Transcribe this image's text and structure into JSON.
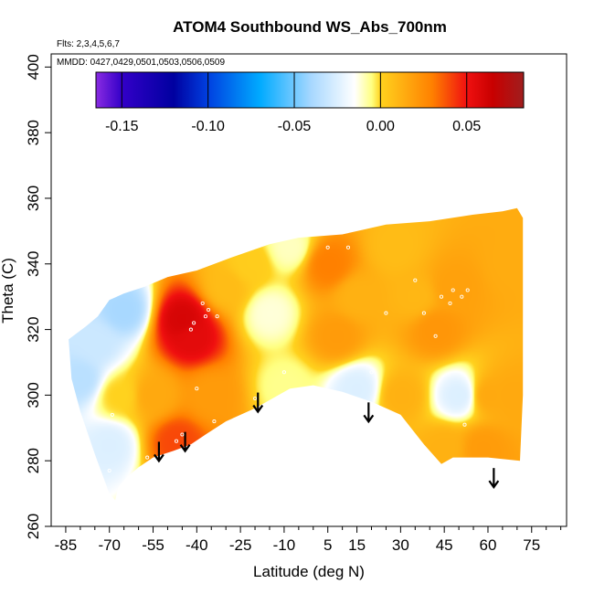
{
  "chart_data": {
    "type": "heatmap",
    "title": "ATOM4 Southbound WS_Abs_700nm",
    "flights_label": "Flts: 2,3,4,5,6,7",
    "dates_label": "MMDD: 0427,0429,0501,0503,0506,0509",
    "xlabel": "Latitude (deg N)",
    "ylabel": "Theta (C)",
    "xlim": [
      -90,
      87
    ],
    "ylim": [
      260,
      404
    ],
    "x_ticks": [
      -85,
      -70,
      -55,
      -40,
      -25,
      -10,
      5,
      15,
      30,
      45,
      60,
      75
    ],
    "x_tick_labels": [
      "-85",
      "-70",
      "-55",
      "-40",
      "-25",
      "-10",
      "5",
      "15",
      "30",
      "45",
      "60",
      "75"
    ],
    "x_minor_ticks": [
      -80,
      -75,
      -65,
      -60,
      -50,
      -45,
      -35,
      -30,
      -20,
      -15,
      -5,
      0,
      10,
      20,
      25,
      35,
      40,
      50,
      55,
      65,
      70,
      80,
      85
    ],
    "y_ticks": [
      260,
      280,
      300,
      320,
      340,
      360,
      380,
      400
    ],
    "y_tick_labels": [
      "260",
      "280",
      "300",
      "320",
      "340",
      "360",
      "380",
      "400"
    ],
    "colorbar": {
      "range": [
        -0.165,
        0.083
      ],
      "ticks": [
        -0.15,
        -0.1,
        -0.05,
        0.0,
        0.05
      ],
      "tick_labels": [
        "-0.15",
        "-0.10",
        "-0.05",
        "0.00",
        "0.05"
      ],
      "stops": [
        {
          "value": -0.165,
          "color": "#8a2be2"
        },
        {
          "value": -0.15,
          "color": "#3300c8"
        },
        {
          "value": -0.12,
          "color": "#0000a0"
        },
        {
          "value": -0.1,
          "color": "#0040e0"
        },
        {
          "value": -0.07,
          "color": "#00aaff"
        },
        {
          "value": -0.04,
          "color": "#a8d8ff"
        },
        {
          "value": -0.015,
          "color": "#ffffff"
        },
        {
          "value": -0.005,
          "color": "#ffff80"
        },
        {
          "value": 0.0,
          "color": "#ffd21e"
        },
        {
          "value": 0.03,
          "color": "#ff8000"
        },
        {
          "value": 0.05,
          "color": "#f01010"
        },
        {
          "value": 0.065,
          "color": "#c80000"
        },
        {
          "value": 0.083,
          "color": "#a01e1e"
        }
      ]
    },
    "coverage_outline": [
      [
        -84,
        317
      ],
      [
        -78,
        321
      ],
      [
        -74,
        324
      ],
      [
        -70,
        329
      ],
      [
        -65,
        331
      ],
      [
        -58,
        333
      ],
      [
        -50,
        336
      ],
      [
        -40,
        338
      ],
      [
        -28,
        342
      ],
      [
        -15,
        346
      ],
      [
        -5,
        348
      ],
      [
        10,
        349
      ],
      [
        25,
        352
      ],
      [
        40,
        353
      ],
      [
        55,
        355
      ],
      [
        65,
        356
      ],
      [
        70,
        357
      ],
      [
        72,
        354
      ],
      [
        72,
        300
      ],
      [
        71,
        280
      ],
      [
        60,
        281
      ],
      [
        48,
        281
      ],
      [
        44,
        279
      ],
      [
        38,
        285
      ],
      [
        30,
        294
      ],
      [
        20,
        298
      ],
      [
        10,
        301
      ],
      [
        0,
        303
      ],
      [
        -8,
        302
      ],
      [
        -20,
        296
      ],
      [
        -30,
        292
      ],
      [
        -37,
        288
      ],
      [
        -42,
        285
      ],
      [
        -48,
        283
      ],
      [
        -55,
        281
      ],
      [
        -60,
        278
      ],
      [
        -64,
        275
      ],
      [
        -67,
        272
      ],
      [
        -68,
        268
      ],
      [
        -70,
        270
      ],
      [
        -75,
        282
      ],
      [
        -80,
        295
      ],
      [
        -83,
        305
      ]
    ],
    "value_field": [
      {
        "lat": -75,
        "theta": 316,
        "value": -0.03
      },
      {
        "lat": -80,
        "theta": 305,
        "value": -0.035
      },
      {
        "lat": -70,
        "theta": 285,
        "value": -0.025
      },
      {
        "lat": -67,
        "theta": 300,
        "value": 0.0
      },
      {
        "lat": -65,
        "theta": 326,
        "value": -0.04
      },
      {
        "lat": -55,
        "theta": 300,
        "value": 0.015
      },
      {
        "lat": -45,
        "theta": 323,
        "value": 0.06
      },
      {
        "lat": -42,
        "theta": 318,
        "value": 0.055
      },
      {
        "lat": -47,
        "theta": 286,
        "value": 0.04
      },
      {
        "lat": -35,
        "theta": 300,
        "value": 0.02
      },
      {
        "lat": -30,
        "theta": 333,
        "value": 0.008
      },
      {
        "lat": -22,
        "theta": 340,
        "value": 0.002
      },
      {
        "lat": -15,
        "theta": 325,
        "value": -0.012
      },
      {
        "lat": -10,
        "theta": 303,
        "value": -0.006
      },
      {
        "lat": -8,
        "theta": 345,
        "value": -0.01
      },
      {
        "lat": 5,
        "theta": 340,
        "value": 0.03
      },
      {
        "lat": 8,
        "theta": 318,
        "value": 0.02
      },
      {
        "lat": 15,
        "theta": 302,
        "value": -0.025
      },
      {
        "lat": 15,
        "theta": 330,
        "value": 0.012
      },
      {
        "lat": 28,
        "theta": 345,
        "value": 0.008
      },
      {
        "lat": 35,
        "theta": 330,
        "value": 0.01
      },
      {
        "lat": 30,
        "theta": 300,
        "value": 0.012
      },
      {
        "lat": 42,
        "theta": 320,
        "value": 0.022
      },
      {
        "lat": 48,
        "theta": 333,
        "value": 0.018
      },
      {
        "lat": 50,
        "theta": 300,
        "value": -0.025
      },
      {
        "lat": 60,
        "theta": 300,
        "value": 0.015
      },
      {
        "lat": 68,
        "theta": 340,
        "value": 0.014
      },
      {
        "lat": 68,
        "theta": 300,
        "value": 0.015
      },
      {
        "lat": 58,
        "theta": 284,
        "value": 0.02
      },
      {
        "lat": 45,
        "theta": 284,
        "value": 0.012
      }
    ],
    "sample_points": [
      [
        -38,
        328
      ],
      [
        -37,
        324
      ],
      [
        -41,
        322
      ],
      [
        -42,
        320
      ],
      [
        -36,
        326
      ],
      [
        -33,
        324
      ],
      [
        -40,
        302
      ],
      [
        -45,
        288
      ],
      [
        -47,
        286
      ],
      [
        -34,
        292
      ],
      [
        -30,
        290
      ],
      [
        -20,
        299
      ],
      [
        -10,
        307
      ],
      [
        -8,
        301
      ],
      [
        -2,
        302
      ],
      [
        5,
        345
      ],
      [
        12,
        345
      ],
      [
        20,
        307
      ],
      [
        25,
        325
      ],
      [
        30,
        293
      ],
      [
        35,
        335
      ],
      [
        38,
        325
      ],
      [
        42,
        318
      ],
      [
        44,
        330
      ],
      [
        47,
        328
      ],
      [
        48,
        332
      ],
      [
        51,
        330
      ],
      [
        53,
        332
      ],
      [
        52,
        291
      ],
      [
        -69,
        294
      ],
      [
        -70,
        277
      ],
      [
        -57,
        281
      ]
    ],
    "markers": [
      {
        "label": "down-arrow",
        "lat": -53,
        "theta": 283
      },
      {
        "label": "down-arrow",
        "lat": -44,
        "theta": 286
      },
      {
        "label": "down-arrow",
        "lat": -19,
        "theta": 298
      },
      {
        "label": "down-arrow",
        "lat": 19,
        "theta": 295
      },
      {
        "label": "down-arrow",
        "lat": 62,
        "theta": 275
      }
    ]
  }
}
